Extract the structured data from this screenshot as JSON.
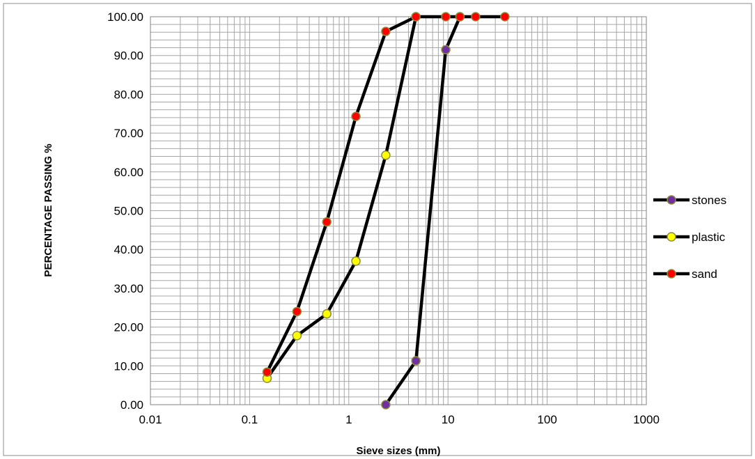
{
  "chart_data": {
    "type": "line",
    "title": "",
    "xlabel": "Sieve sizes (mm)",
    "ylabel": "PERCENTAGE PASSING %",
    "x_scale": "log",
    "xlim": [
      0.01,
      1000
    ],
    "ylim": [
      0,
      100
    ],
    "x_ticks": [
      "0.01",
      "0.1",
      "1",
      "10",
      "100",
      "1000"
    ],
    "y_ticks": [
      "0.00",
      "10.00",
      "20.00",
      "30.00",
      "40.00",
      "50.00",
      "60.00",
      "70.00",
      "80.00",
      "90.00",
      "100.00"
    ],
    "grid": true,
    "legend_position": "right",
    "series": [
      {
        "name": "stones",
        "marker_color": "#7030a0",
        "x": [
          2.36,
          4.75,
          9.5,
          13.2
        ],
        "y": [
          0.0,
          11.3,
          91.5,
          100.0
        ]
      },
      {
        "name": "plastic",
        "marker_color": "#ffff00",
        "x": [
          0.15,
          0.3,
          0.6,
          1.18,
          2.36,
          4.75
        ],
        "y": [
          6.8,
          17.8,
          23.4,
          37.0,
          64.3,
          100.0
        ]
      },
      {
        "name": "sand",
        "marker_color": "#ff0000",
        "x": [
          0.15,
          0.3,
          0.6,
          1.18,
          2.36,
          4.75,
          9.5,
          13.2,
          19.0,
          37.5
        ],
        "y": [
          8.4,
          24.0,
          47.1,
          74.3,
          96.2,
          100.0,
          100.0,
          100.0,
          100.0,
          100.0
        ]
      }
    ]
  }
}
